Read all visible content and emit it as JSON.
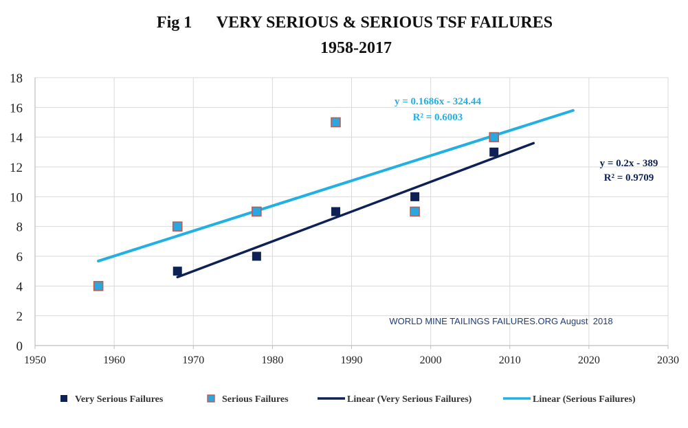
{
  "chart_data": {
    "type": "scatter",
    "title": "Fig 1      VERY SERIOUS & SERIOUS TSF FAILURES",
    "subtitle": "1958-2017",
    "xlabel": "",
    "ylabel": "",
    "xlim": [
      1950,
      2030
    ],
    "ylim": [
      0,
      18
    ],
    "x_ticks": [
      1950,
      1960,
      1970,
      1980,
      1990,
      2000,
      2010,
      2020,
      2030
    ],
    "y_ticks": [
      0,
      2,
      4,
      6,
      8,
      10,
      12,
      14,
      16,
      18
    ],
    "grid": true,
    "series": [
      {
        "name": "Very Serious Failures",
        "color": "#0d2154",
        "marker": "square",
        "x": [
          1968,
          1978,
          1988,
          1998,
          2008
        ],
        "y": [
          5,
          6,
          9,
          10,
          13
        ]
      },
      {
        "name": "Serious Failures",
        "color": "#2aa7de",
        "edge_color": "#c05a50",
        "marker": "square",
        "x": [
          1958,
          1968,
          1978,
          1988,
          1998,
          2008
        ],
        "y": [
          4,
          8,
          9,
          15,
          9,
          14
        ]
      }
    ],
    "trendlines": [
      {
        "name": "Linear (Very Serious Failures)",
        "color": "#0d2154",
        "slope": 0.2,
        "intercept": -389,
        "x_range": [
          1968,
          2013
        ],
        "equation": "y = 0.2x - 389",
        "r_squared": "R² = 0.9709"
      },
      {
        "name": "Linear (Serious Failures)",
        "color": "#22b0e2",
        "slope": 0.1686,
        "intercept": -324.44,
        "x_range": [
          1958,
          2018
        ],
        "equation": "y = 0.1686x - 324.44",
        "r_squared": "R² = 0.6003"
      }
    ],
    "annotations": [
      {
        "text": "WORLD MINE TAILINGS FAILURES.ORG August  2018",
        "color": "#1f3b7a"
      }
    ],
    "legend": {
      "placement": "bottom",
      "entries": [
        "Very Serious Failures",
        "Serious Failures",
        "Linear (Very Serious Failures)",
        "Linear (Serious Failures)"
      ]
    }
  }
}
